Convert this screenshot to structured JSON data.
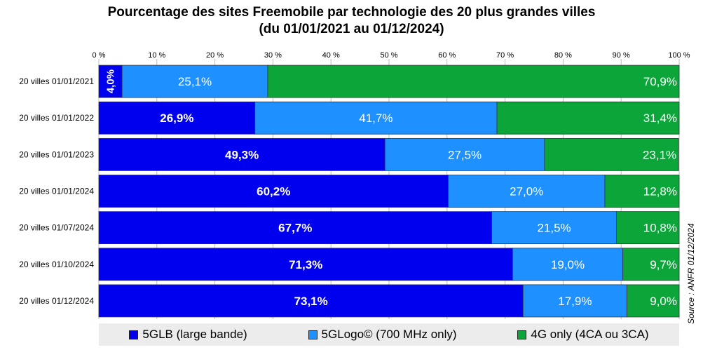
{
  "title_line1": "Pourcentage des sites Freemobile par technologie des 20 plus grandes villes",
  "title_line2": "(du 01/01/2021 au 01/12/2024)",
  "source": "Source : ANFR 01/12/2024",
  "colors": {
    "5glb": "#0000ee",
    "5glogo": "#1e90ff",
    "4g": "#0ba53a"
  },
  "chart_data": {
    "type": "bar",
    "orientation": "horizontal",
    "stacked": true,
    "title": "Pourcentage des sites Freemobile par technologie des 20 plus grandes villes (du 01/01/2021 au 01/12/2024)",
    "xlim": [
      0,
      100
    ],
    "x_ticks": [
      "0 %",
      "10 %",
      "20 %",
      "30 %",
      "40 %",
      "50 %",
      "60 %",
      "70 %",
      "80 %",
      "90 %",
      "100 %"
    ],
    "x_tick_values": [
      0,
      10,
      20,
      30,
      40,
      50,
      60,
      70,
      80,
      90,
      100
    ],
    "grid": true,
    "legend_position": "bottom",
    "categories": [
      "20 villes 01/01/2021",
      "20 villes 01/01/2022",
      "20 villes 01/01/2023",
      "20 villes 01/01/2024",
      "20 villes 01/07/2024",
      "20 villes 01/10/2024",
      "20 villes 01/12/2024"
    ],
    "series": [
      {
        "name": "5GLB (large bande)",
        "key": "5glb",
        "values": [
          4.0,
          26.9,
          49.3,
          60.2,
          67.7,
          71.3,
          73.1
        ],
        "labels": [
          "4,0%",
          "26,9%",
          "49,3%",
          "60,2%",
          "67,7%",
          "71,3%",
          "73,1%"
        ]
      },
      {
        "name": "5GLogo© (700 MHz only)",
        "key": "5glogo",
        "values": [
          25.1,
          41.7,
          27.5,
          27.0,
          21.5,
          19.0,
          17.9
        ],
        "labels": [
          "25,1%",
          "41,7%",
          "27,5%",
          "27,0%",
          "21,5%",
          "19,0%",
          "17,9%"
        ]
      },
      {
        "name": "4G only (4CA ou 3CA)",
        "key": "4g",
        "values": [
          70.9,
          31.4,
          23.1,
          12.8,
          10.8,
          9.7,
          9.0
        ],
        "labels": [
          "70,9%",
          "31,4%",
          "23,1%",
          "12,8%",
          "10,8%",
          "9,7%",
          "9,0%"
        ]
      }
    ]
  }
}
